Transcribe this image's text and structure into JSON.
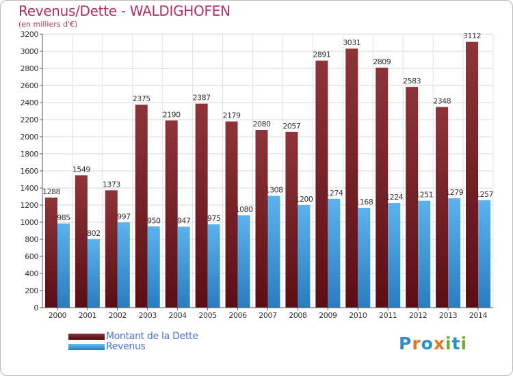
{
  "chart_data": {
    "type": "bar",
    "title": "Revenus/Dette - WALDIGHOFEN",
    "subtitle": "(en milliers d'€)",
    "categories": [
      "2000",
      "2001",
      "2002",
      "2003",
      "2004",
      "2005",
      "2006",
      "2007",
      "2008",
      "2009",
      "2010",
      "2011",
      "2012",
      "2013",
      "2014"
    ],
    "series": [
      {
        "name": "Montant de la Dette",
        "values": [
          1288,
          1549,
          1373,
          2375,
          2190,
          2387,
          2179,
          2080,
          2057,
          2891,
          3031,
          2809,
          2583,
          2348,
          3112
        ]
      },
      {
        "name": "Revenus",
        "values": [
          985,
          802,
          997,
          950,
          947,
          975,
          1080,
          1308,
          1200,
          1274,
          1168,
          1224,
          1251,
          1279,
          1257
        ]
      }
    ],
    "ylim": [
      0,
      3200
    ],
    "yticks": [
      0,
      200,
      400,
      600,
      800,
      1000,
      1200,
      1400,
      1600,
      1800,
      2000,
      2200,
      2400,
      2600,
      2800,
      3000,
      3200
    ],
    "grid": true,
    "legend_position": "bottom-left",
    "colors": {
      "dette": "#7a1f25",
      "revenus": "#3d97d9",
      "title": "#b03060",
      "legend_text": "#4a6ee0"
    }
  },
  "logo": {
    "text": "Proxiti",
    "letters": [
      "P",
      "r",
      "o",
      "x",
      "i",
      "t",
      "i"
    ],
    "colors": [
      "#2a8fd0",
      "#e07820",
      "#2a8fd0",
      "#e07820",
      "#6ab030",
      "#2a8fd0",
      "#6ab030"
    ]
  }
}
